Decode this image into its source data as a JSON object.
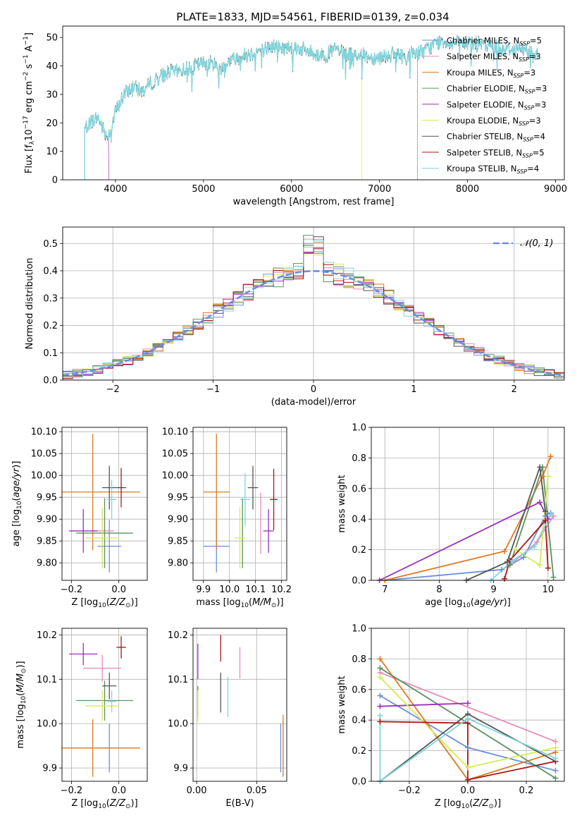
{
  "title": "PLATE=1833, MJD=54561, FIBERID=0139, z=0.034",
  "colors": {
    "Chabrier MILES": "#6b8edf",
    "Salpeter MILES": "#e88ab8",
    "Kroupa MILES": "#dd7a22",
    "Chabrier ELODIE": "#5a9160",
    "Salpeter ELODIE": "#9a2fbf",
    "Kroupa ELODIE": "#d6ea55",
    "Chabrier STELIB": "#555555",
    "Salpeter STELIB": "#aa1515",
    "Kroupa STELIB": "#7fd5dc"
  },
  "chart_data": [
    {
      "id": "spectrum",
      "type": "line",
      "title": "PLATE=1833, MJD=54561, FIBERID=0139, z=0.034",
      "xlabel": "wavelength [Angstrom, rest frame]",
      "ylabel": "Flux [f_λ 10^-17 erg cm^-2 s^-1 A^-1]",
      "xlim": [
        3400,
        9100
      ],
      "ylim": [
        0,
        54
      ],
      "xticks": [
        4000,
        5000,
        6000,
        7000,
        8000,
        9000
      ],
      "yticks": [
        0,
        10,
        20,
        30,
        40,
        50
      ],
      "grid": false,
      "legend": "right",
      "legend_entries": [
        "Chabrier MILES, N_SSP=5",
        "Salpeter MILES, N_SSP=3",
        "Kroupa MILES, N_SSP=3",
        "Chabrier ELODIE, N_SSP=3",
        "Salpeter ELODIE, N_SSP=3",
        "Kroupa ELODIE, N_SSP=3",
        "Chabrier STELIB, N_SSP=4",
        "Salpeter STELIB, N_SSP=5",
        "Kroupa STELIB, N_SSP=4"
      ],
      "continuum": {
        "x": [
          3650,
          3700,
          3800,
          3900,
          3950,
          4000,
          4100,
          4200,
          4300,
          4400,
          4500,
          4600,
          4700,
          4800,
          4900,
          5000,
          5100,
          5200,
          5300,
          5400,
          5500,
          5600,
          5700,
          5800,
          5900,
          6000,
          6100,
          6200,
          6300,
          6400,
          6500,
          6600,
          6700,
          6800,
          6900,
          7000,
          7100,
          7200,
          7300,
          7400,
          7500,
          7600,
          7700,
          7800,
          7900,
          8000,
          8100,
          8200,
          8300,
          8400,
          8500,
          8600,
          8700,
          8800
        ],
        "y": [
          18,
          20,
          22,
          15,
          18,
          24,
          30,
          33,
          31,
          34,
          36,
          38,
          38,
          39,
          40,
          41,
          41,
          39,
          42,
          43,
          44,
          45,
          46,
          47,
          46,
          47,
          46,
          45,
          44,
          44,
          46,
          44,
          44,
          44,
          43,
          43,
          44,
          44,
          43,
          45,
          45,
          47,
          49,
          48,
          48,
          48,
          48,
          47,
          47,
          46,
          46,
          46,
          45,
          45
        ]
      }
    },
    {
      "id": "residuals",
      "type": "line",
      "xlabel": "(data-model)/error",
      "ylabel": "Normed distribution",
      "xlim": [
        -2.5,
        2.5
      ],
      "ylim": [
        0,
        0.56
      ],
      "xticks": [
        -2,
        -1,
        0,
        1,
        2
      ],
      "yticks": [
        0.0,
        0.1,
        0.2,
        0.3,
        0.4,
        0.5
      ],
      "grid": true,
      "legend": "top-right",
      "legend_entries": [
        "𝒩(0, 1)"
      ],
      "bin_width": 0.1,
      "reference_curve": "N(0,1)"
    },
    {
      "id": "age_vs_Z",
      "type": "scatter",
      "xlabel": "Z [log10(Z/Z⊙)]",
      "ylabel": "age  [log10(age/yr)]",
      "xlim": [
        -0.24,
        0.12
      ],
      "ylim": [
        9.76,
        10.11
      ],
      "xticks": [
        -0.2,
        0.0
      ],
      "yticks": [
        9.8,
        9.85,
        9.9,
        9.95,
        10.0,
        10.05,
        10.1
      ],
      "grid": true,
      "points": [
        {
          "model": "Chabrier MILES",
          "x": -0.04,
          "xerr": 0.05,
          "y": 9.838,
          "yerr": 0.06
        },
        {
          "model": "Salpeter MILES",
          "x": -0.07,
          "xerr": 0.05,
          "y": 9.873,
          "yerr": 0.05
        },
        {
          "model": "Kroupa MILES",
          "x": -0.11,
          "xerr": 0.2,
          "y": 9.962,
          "yerr": 0.133
        },
        {
          "model": "Chabrier ELODIE",
          "x": -0.06,
          "xerr": 0.12,
          "y": 9.868,
          "yerr": 0.08
        },
        {
          "model": "Salpeter ELODIE",
          "x": -0.15,
          "xerr": 0.06,
          "y": 9.873,
          "yerr": 0.05
        },
        {
          "model": "Kroupa ELODIE",
          "x": -0.07,
          "xerr": 0.07,
          "y": 9.857,
          "yerr": 0.07
        },
        {
          "model": "Chabrier STELIB",
          "x": -0.04,
          "xerr": 0.03,
          "y": 9.972,
          "yerr": 0.05
        },
        {
          "model": "Salpeter STELIB",
          "x": 0.01,
          "xerr": 0.02,
          "y": 9.972,
          "yerr": 0.045
        },
        {
          "model": "Kroupa STELIB",
          "x": -0.03,
          "xerr": 0.02,
          "y": 9.945,
          "yerr": 0.045
        }
      ]
    },
    {
      "id": "age_vs_mass",
      "type": "scatter",
      "xlabel": "mass [log10(M/M⊙)]",
      "ylabel": "",
      "xlim": [
        9.86,
        10.22
      ],
      "ylim": [
        9.76,
        10.11
      ],
      "xticks": [
        9.9,
        10.0,
        10.1,
        10.2
      ],
      "yticks": [
        9.8,
        9.85,
        9.9,
        9.95,
        10.0,
        10.05,
        10.1
      ],
      "grid": true,
      "points": [
        {
          "model": "Chabrier MILES",
          "x": 9.95,
          "xerr": 0.05,
          "y": 9.838,
          "yerr": 0.06
        },
        {
          "model": "Salpeter MILES",
          "x": 10.12,
          "xerr": 0.0,
          "y": 9.89,
          "yerr": 0.07
        },
        {
          "model": "Kroupa MILES",
          "x": 9.95,
          "xerr": 0.05,
          "y": 9.962,
          "yerr": 0.133
        },
        {
          "model": "Chabrier ELODIE",
          "x": 10.05,
          "xerr": 0.0,
          "y": 9.868,
          "yerr": 0.08
        },
        {
          "model": "Salpeter ELODIE",
          "x": 10.15,
          "xerr": 0.02,
          "y": 9.873,
          "yerr": 0.05
        },
        {
          "model": "Kroupa ELODIE",
          "x": 10.04,
          "xerr": 0.02,
          "y": 9.857,
          "yerr": 0.07
        },
        {
          "model": "Chabrier STELIB",
          "x": 10.09,
          "xerr": 0.02,
          "y": 9.972,
          "yerr": 0.05
        },
        {
          "model": "Salpeter STELIB",
          "x": 10.17,
          "xerr": 0.015,
          "y": 9.945,
          "yerr": 0.07
        },
        {
          "model": "Kroupa STELIB",
          "x": 10.06,
          "xerr": 0.02,
          "y": 9.945,
          "yerr": 0.06
        }
      ]
    },
    {
      "id": "weight_vs_age",
      "type": "line",
      "xlabel": "age  [log10(age/yr)]",
      "ylabel": "mass weight",
      "xlim": [
        6.75,
        10.3
      ],
      "ylim": [
        0.0,
        1.0
      ],
      "xticks": [
        7,
        8,
        9,
        10
      ],
      "yticks": [
        0.0,
        0.2,
        0.4,
        0.6,
        0.8,
        1.0
      ],
      "grid": true,
      "series": [
        {
          "model": "Chabrier MILES",
          "x": [
            7.0,
            9.15,
            9.55,
            9.95,
            10.05
          ],
          "y": [
            0.0,
            0.07,
            0.15,
            0.42,
            0.44
          ]
        },
        {
          "model": "Salpeter MILES",
          "x": [
            9.3,
            9.8,
            10.1
          ],
          "y": [
            0.1,
            0.25,
            0.42
          ]
        },
        {
          "model": "Kroupa MILES",
          "x": [
            7.0,
            9.2,
            9.9,
            10.05
          ],
          "y": [
            0.0,
            0.19,
            0.68,
            0.81
          ]
        },
        {
          "model": "Chabrier ELODIE",
          "x": [
            9.3,
            9.9,
            10.1
          ],
          "y": [
            0.1,
            0.74,
            0.02
          ]
        },
        {
          "model": "Salpeter ELODIE",
          "x": [
            6.9,
            9.85,
            10.0
          ],
          "y": [
            0.0,
            0.51,
            0.4
          ]
        },
        {
          "model": "Kroupa ELODIE",
          "x": [
            9.4,
            9.85,
            10.0
          ],
          "y": [
            0.2,
            0.1,
            0.68
          ]
        },
        {
          "model": "Chabrier STELIB",
          "x": [
            8.5,
            9.25,
            9.85,
            9.95
          ],
          "y": [
            0.0,
            0.12,
            0.74,
            0.45
          ]
        },
        {
          "model": "Salpeter STELIB",
          "x": [
            9.2,
            9.3,
            9.95,
            10.0
          ],
          "y": [
            0.01,
            0.13,
            0.39,
            0.08
          ]
        },
        {
          "model": "Kroupa STELIB",
          "x": [
            8.95,
            9.35,
            9.75,
            10.05
          ],
          "y": [
            0.0,
            0.13,
            0.22,
            0.43
          ]
        }
      ]
    },
    {
      "id": "mass_vs_Z",
      "type": "scatter",
      "xlabel": "Z [log10(Z/Z⊙)]",
      "ylabel": "mass [log10(M/M⊙)]",
      "xlim": [
        -0.24,
        0.12
      ],
      "ylim": [
        9.87,
        10.215
      ],
      "xticks": [
        -0.2,
        0.0
      ],
      "yticks": [
        9.9,
        10.0,
        10.1,
        10.2
      ],
      "grid": true,
      "points": [
        {
          "model": "Chabrier MILES",
          "x": -0.04,
          "xerr": 0.05,
          "y": 9.945,
          "yerr": 0.055
        },
        {
          "model": "Salpeter MILES",
          "x": -0.07,
          "xerr": 0.08,
          "y": 10.125,
          "yerr": 0.03
        },
        {
          "model": "Kroupa MILES",
          "x": -0.11,
          "xerr": 0.2,
          "y": 9.945,
          "yerr": 0.065
        },
        {
          "model": "Chabrier ELODIE",
          "x": -0.06,
          "xerr": 0.12,
          "y": 10.052,
          "yerr": 0.045
        },
        {
          "model": "Salpeter ELODIE",
          "x": -0.15,
          "xerr": 0.06,
          "y": 10.157,
          "yerr": 0.025
        },
        {
          "model": "Kroupa ELODIE",
          "x": -0.07,
          "xerr": 0.07,
          "y": 10.04,
          "yerr": 0.035
        },
        {
          "model": "Chabrier STELIB",
          "x": -0.04,
          "xerr": 0.03,
          "y": 10.085,
          "yerr": 0.03
        },
        {
          "model": "Salpeter STELIB",
          "x": 0.01,
          "xerr": 0.02,
          "y": 10.172,
          "yerr": 0.025
        },
        {
          "model": "Kroupa STELIB",
          "x": -0.03,
          "xerr": 0.02,
          "y": 10.05,
          "yerr": 0.025
        }
      ]
    },
    {
      "id": "mass_vs_ebv",
      "type": "scatter",
      "xlabel": "E(B-V)",
      "ylabel": "",
      "xlim": [
        -0.003,
        0.075
      ],
      "ylim": [
        9.87,
        10.215
      ],
      "xticks": [
        0.0,
        0.05
      ],
      "yticks": [
        9.9,
        10.0,
        10.1,
        10.2
      ],
      "grid": true,
      "points": [
        {
          "model": "Chabrier MILES",
          "x": 0.07,
          "xerr": 0.0,
          "y": 9.945,
          "yerr": 0.055
        },
        {
          "model": "Salpeter MILES",
          "x": 0.036,
          "xerr": 0.0,
          "y": 10.137,
          "yerr": 0.035
        },
        {
          "model": "Kroupa MILES",
          "x": 0.072,
          "xerr": 0.0,
          "y": 9.95,
          "yerr": 0.07
        },
        {
          "model": "Chabrier ELODIE",
          "x": 0.001,
          "xerr": 0.0,
          "y": 10.05,
          "yerr": 0.035
        },
        {
          "model": "Salpeter ELODIE",
          "x": 0.001,
          "xerr": 0.0,
          "y": 10.14,
          "yerr": 0.04
        },
        {
          "model": "Kroupa ELODIE",
          "x": 0.001,
          "xerr": 0.0,
          "y": 10.04,
          "yerr": 0.035
        },
        {
          "model": "Chabrier STELIB",
          "x": 0.02,
          "xerr": 0.0,
          "y": 10.07,
          "yerr": 0.045
        },
        {
          "model": "Salpeter STELIB",
          "x": 0.02,
          "xerr": 0.0,
          "y": 10.17,
          "yerr": 0.03
        },
        {
          "model": "Kroupa STELIB",
          "x": 0.026,
          "xerr": 0.0,
          "y": 10.06,
          "yerr": 0.045
        }
      ]
    },
    {
      "id": "weight_vs_Z",
      "type": "line",
      "xlabel": "Z [log10(Z/Z⊙)]",
      "ylabel": "mass weight",
      "xlim": [
        -0.33,
        0.33
      ],
      "ylim": [
        0.0,
        1.0
      ],
      "xticks": [
        -0.2,
        0.0,
        0.2
      ],
      "yticks": [
        0.0,
        0.2,
        0.4,
        0.6,
        0.8,
        1.0
      ],
      "grid": true,
      "series": [
        {
          "model": "Chabrier MILES",
          "x": [
            -0.3,
            0.0,
            0.3
          ],
          "y": [
            0.56,
            0.22,
            0.07
          ]
        },
        {
          "model": "Salpeter MILES",
          "x": [
            -0.3,
            0.3
          ],
          "y": [
            0.71,
            0.26
          ]
        },
        {
          "model": "Kroupa MILES",
          "x": [
            -0.3,
            0.0,
            0.3
          ],
          "y": [
            0.8,
            0.01,
            0.19
          ]
        },
        {
          "model": "Chabrier ELODIE",
          "x": [
            -0.3,
            0.3
          ],
          "y": [
            0.74,
            0.02
          ]
        },
        {
          "model": "Salpeter ELODIE",
          "x": [
            -0.3,
            0.0
          ],
          "y": [
            0.49,
            0.51
          ]
        },
        {
          "model": "Kroupa ELODIE",
          "x": [
            -0.3,
            0.0,
            0.3
          ],
          "y": [
            0.68,
            0.09,
            0.22
          ]
        },
        {
          "model": "Chabrier STELIB",
          "x": [
            -0.3,
            0.0,
            0.3
          ],
          "y": [
            0.0,
            0.44,
            0.13
          ]
        },
        {
          "model": "Salpeter STELIB",
          "x": [
            -0.3,
            0.0,
            0.0,
            0.3
          ],
          "y": [
            0.39,
            0.38,
            0.01,
            0.13
          ]
        },
        {
          "model": "Kroupa STELIB",
          "x": [
            -0.3,
            -0.3,
            0.0,
            0.3
          ],
          "y": [
            0.43,
            0.0,
            0.41,
            0.15
          ]
        }
      ]
    }
  ]
}
